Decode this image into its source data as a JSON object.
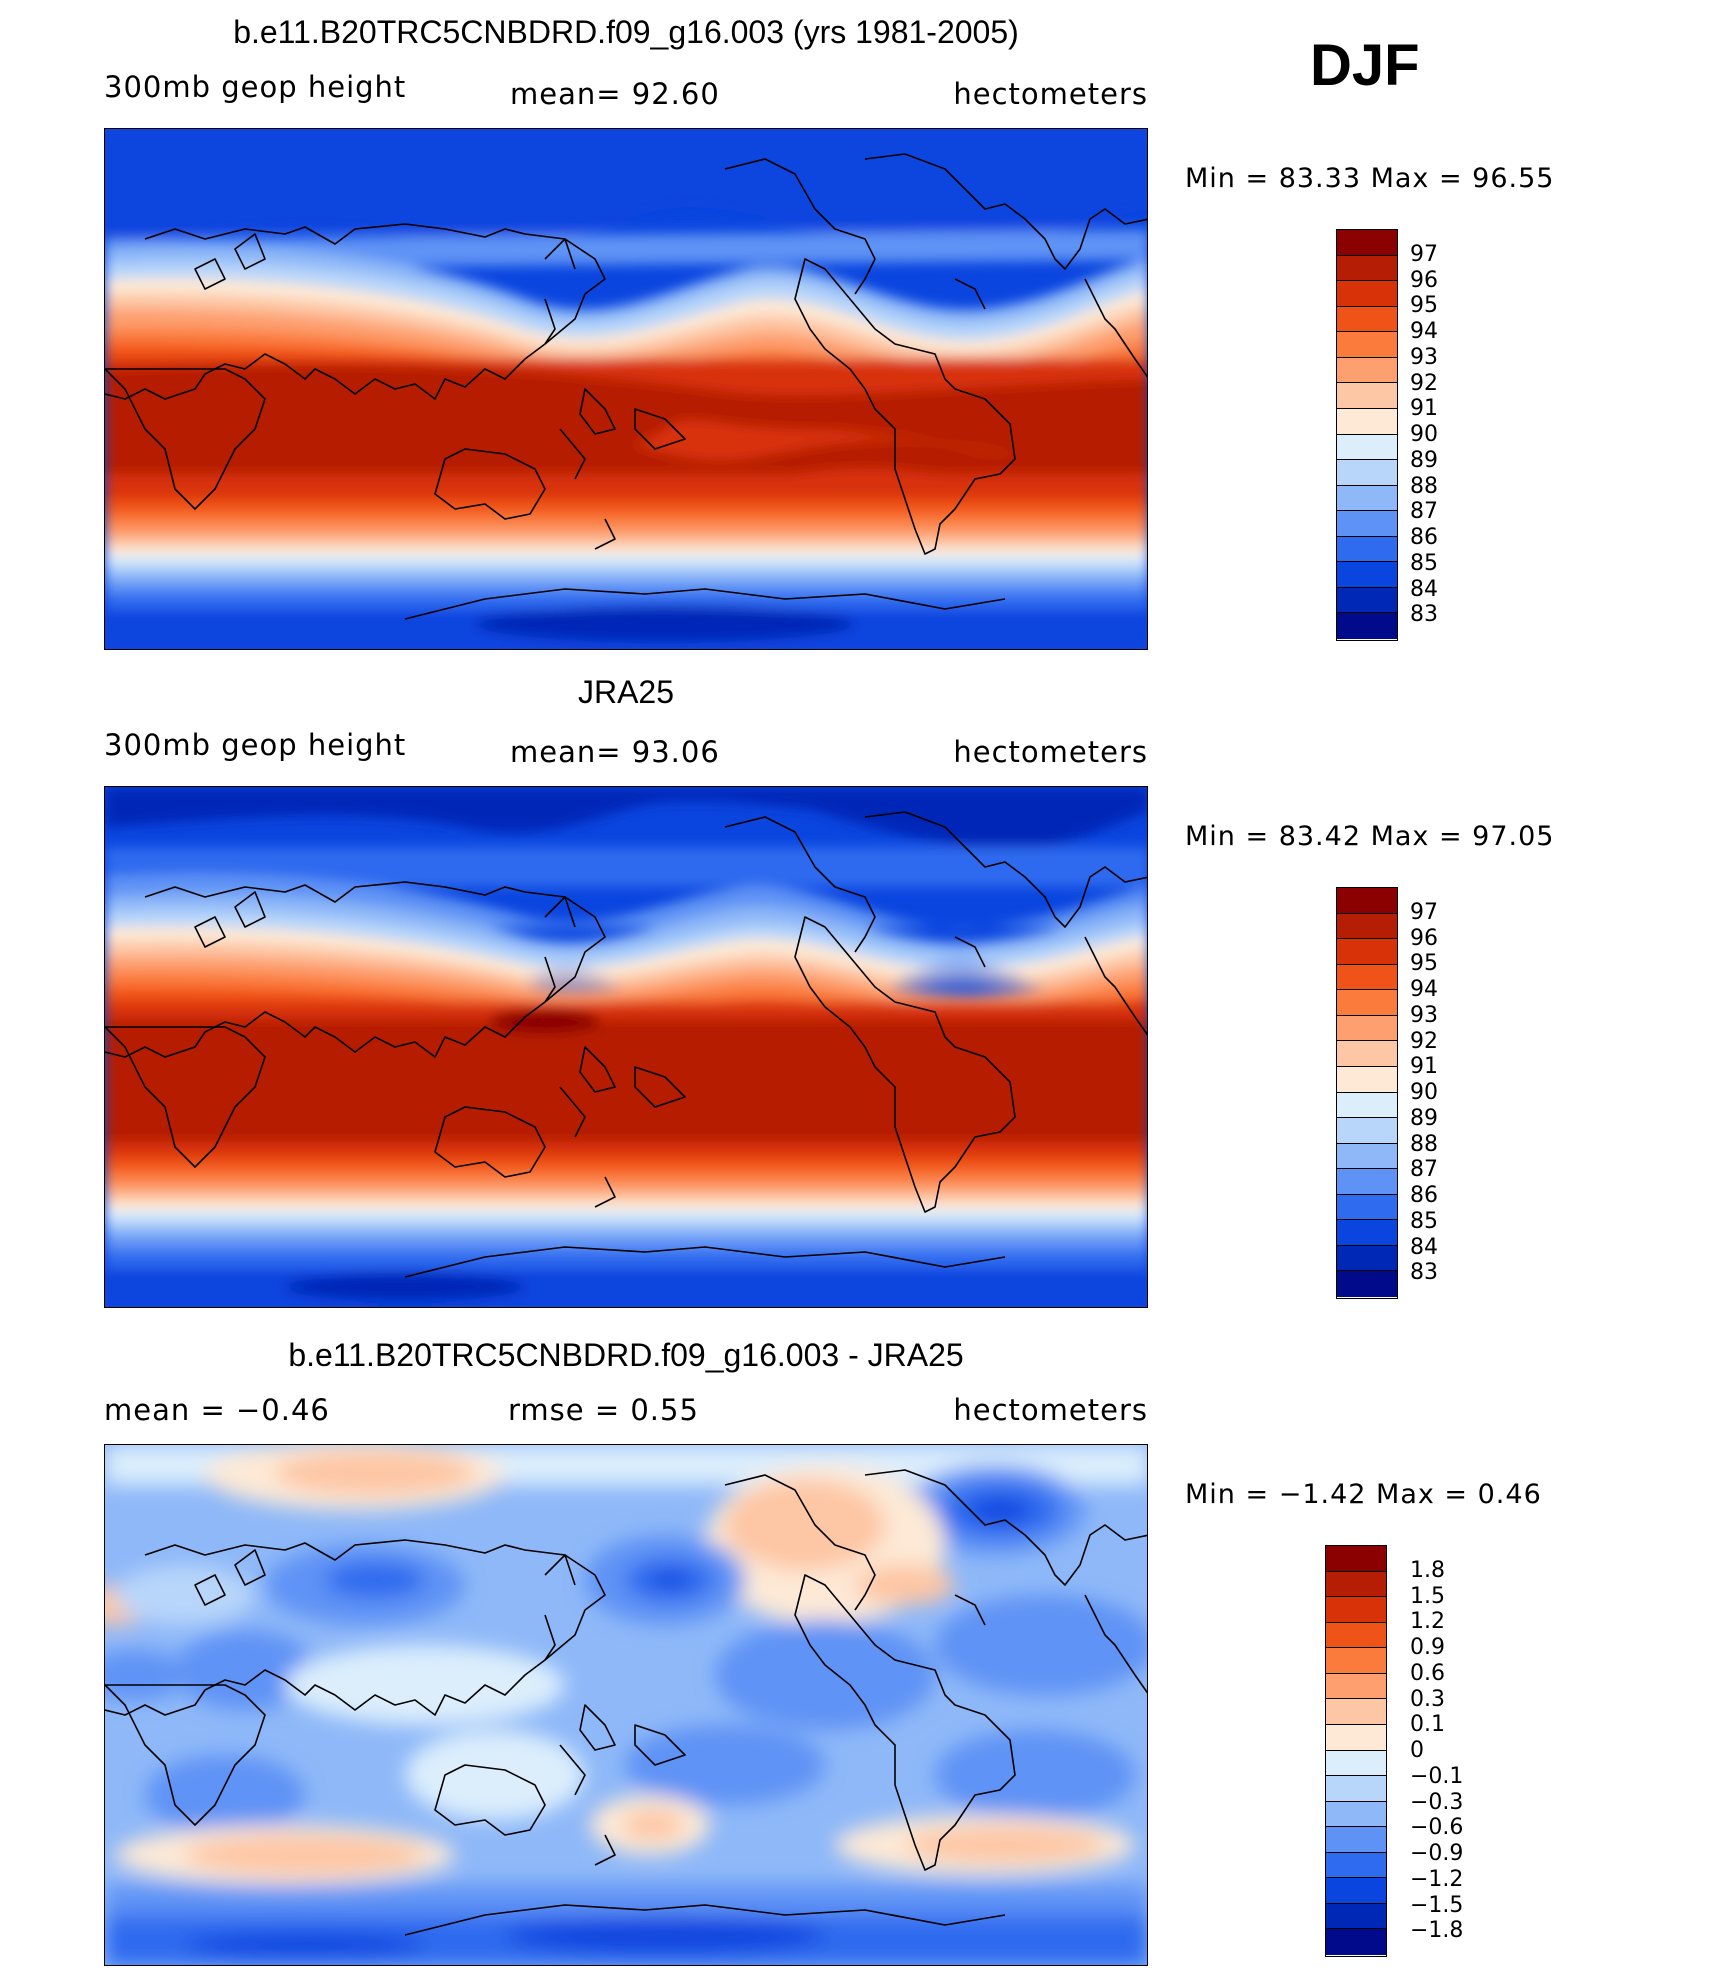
{
  "season": "DJF",
  "panels": [
    {
      "id": "model",
      "title": "b.e11.B20TRC5CNBDRD.f09_g16.003 (yrs 1981-2005)",
      "left_label": "300mb geop height",
      "center_label": "mean=   92.60",
      "right_label": "hectometers",
      "minmax": "Min =   83.33 Max =   96.55",
      "colorbar_levels": [
        "97",
        "96",
        "95",
        "94",
        "93",
        "92",
        "91",
        "90",
        "89",
        "88",
        "87",
        "86",
        "85",
        "84",
        "83"
      ],
      "colorbar_colors": [
        "#8b0000",
        "#b51d04",
        "#d83208",
        "#f05318",
        "#fb7b3c",
        "#fd9f6e",
        "#fdc6a4",
        "#fde9d6",
        "#dceefc",
        "#b8d6fa",
        "#8eb8f8",
        "#5e93f5",
        "#2f6bef",
        "#0a45df",
        "#0028b7",
        "#000a8a"
      ]
    },
    {
      "id": "obs",
      "title": "JRA25",
      "left_label": "300mb geop height",
      "center_label": "mean=   93.06",
      "right_label": "hectometers",
      "minmax": "Min =   83.42 Max =   97.05",
      "colorbar_levels": [
        "97",
        "96",
        "95",
        "94",
        "93",
        "92",
        "91",
        "90",
        "89",
        "88",
        "87",
        "86",
        "85",
        "84",
        "83"
      ],
      "colorbar_colors": [
        "#8b0000",
        "#b51d04",
        "#d83208",
        "#f05318",
        "#fb7b3c",
        "#fd9f6e",
        "#fdc6a4",
        "#fde9d6",
        "#dceefc",
        "#b8d6fa",
        "#8eb8f8",
        "#5e93f5",
        "#2f6bef",
        "#0a45df",
        "#0028b7",
        "#000a8a"
      ]
    },
    {
      "id": "diff",
      "title": "b.e11.B20TRC5CNBDRD.f09_g16.003 - JRA25",
      "left_label": "mean =   −0.46",
      "center_label": "rmse =    0.55",
      "right_label": "hectometers",
      "minmax": "Min =   −1.42  Max =     0.46",
      "colorbar_levels": [
        "1.8",
        "1.5",
        "1.2",
        "0.9",
        "0.6",
        "0.3",
        "0.1",
        "0",
        "−0.1",
        "−0.3",
        "−0.6",
        "−0.9",
        "−1.2",
        "−1.5",
        "−1.8"
      ],
      "colorbar_colors": [
        "#8b0000",
        "#b51d04",
        "#d83208",
        "#f05318",
        "#fb7b3c",
        "#fd9f6e",
        "#fdc6a4",
        "#fde9d6",
        "#dceefc",
        "#b8d6fa",
        "#8eb8f8",
        "#5e93f5",
        "#2f6bef",
        "#0a45df",
        "#0028b7",
        "#000a8a"
      ]
    }
  ]
}
